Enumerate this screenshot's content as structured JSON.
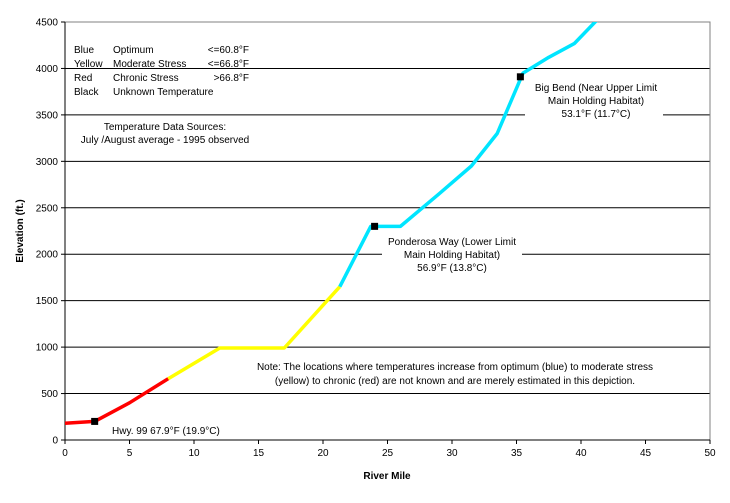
{
  "chart_data": {
    "type": "line",
    "xlabel": "River Mile",
    "ylabel": "Elevation (ft.)",
    "xlim": [
      0,
      50
    ],
    "ylim": [
      0,
      4500
    ],
    "xticks": [
      "0",
      "5",
      "10",
      "15",
      "20",
      "25",
      "30",
      "35",
      "40",
      "45",
      "50"
    ],
    "yticks": [
      "0",
      "500",
      "1000",
      "1500",
      "2000",
      "2500",
      "3000",
      "3500",
      "4000",
      "4500"
    ],
    "grid": "horizontal",
    "colors": {
      "red": "#ff0000",
      "yellow": "#ffff00",
      "blue": "#00e5ff",
      "black": "#000000"
    },
    "series": [
      {
        "color_key": "red",
        "points": [
          [
            0,
            180
          ],
          [
            2.3,
            200
          ],
          [
            5,
            400
          ],
          [
            8,
            660
          ]
        ]
      },
      {
        "color_key": "yellow",
        "points": [
          [
            8,
            660
          ],
          [
            12,
            990
          ],
          [
            17,
            990
          ],
          [
            21.3,
            1650
          ]
        ]
      },
      {
        "color_key": "blue",
        "points": [
          [
            21.3,
            1650
          ],
          [
            23.7,
            2300
          ],
          [
            26,
            2300
          ],
          [
            29,
            2650
          ],
          [
            31.5,
            2950
          ],
          [
            33.5,
            3300
          ],
          [
            35.5,
            3950
          ],
          [
            37.5,
            4120
          ],
          [
            39.5,
            4270
          ],
          [
            41.3,
            4530
          ]
        ]
      }
    ],
    "markers": [
      {
        "x": 2.3,
        "y": 200
      },
      {
        "x": 24,
        "y": 2300
      },
      {
        "x": 35.3,
        "y": 3910
      }
    ],
    "legend": {
      "rows": [
        {
          "color": "Blue",
          "label": "Optimum",
          "limit": "<=60.8°F"
        },
        {
          "color": "Yellow",
          "label": "Moderate Stress",
          "limit": "<=66.8°F"
        },
        {
          "color": "Red",
          "label": "Chronic Stress",
          "limit": ">66.8°F"
        },
        {
          "color": "Black",
          "label": "Unknown Temperature",
          "limit": ""
        }
      ]
    },
    "sources": {
      "line1": "Temperature Data Sources:",
      "line2": "July /August average - 1995 observed"
    },
    "annotations": {
      "big_bend": {
        "line1": "Big Bend (Near Upper Limit",
        "line2": "Main Holding Habitat)",
        "line3": "53.1°F (11.7°C)"
      },
      "ponderosa": {
        "line1": "Ponderosa Way (Lower Limit",
        "line2": "Main Holding Habitat)",
        "line3": "56.9°F (13.8°C)"
      },
      "hwy": "Hwy. 99  67.9°F (19.9°C)",
      "note": {
        "line1": "Note:  The locations where temperatures increase from optimum (blue) to moderate stress",
        "line2": "(yellow) to chronic (red) are not known and are merely estimated in this depiction."
      }
    }
  }
}
